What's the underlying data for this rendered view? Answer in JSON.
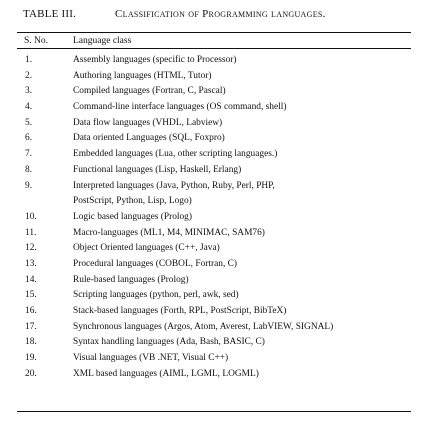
{
  "table": {
    "label": "TABLE III.",
    "title": "Classification of Programming languages.",
    "headers": {
      "no": "S. No.",
      "language_class": "Language class"
    },
    "rows": [
      {
        "no": "1.",
        "text": "Assembly languages (specific to Processor)"
      },
      {
        "no": "2.",
        "text": "Authoring languages (HTML, Tutor)"
      },
      {
        "no": "3.",
        "text": "Compiled languages (Fortran, C, Pascal)"
      },
      {
        "no": "4.",
        "text": "Command-line interface languages (OS command, shell)"
      },
      {
        "no": "5.",
        "text": "Data flow languages (VHDL, Labview)"
      },
      {
        "no": "6.",
        "text": "Data oriented Languages (SQL, Foxpro)"
      },
      {
        "no": "7.",
        "text": "Embedded languages (Lua, other scripting languages.)"
      },
      {
        "no": "8.",
        "text": "Functional languages (Lisp, Haskell, Erlang)"
      },
      {
        "no": "9.",
        "text": "Interpreted languages (Java, Python, Ruby, Perl, PHP,",
        "continuation": "PostScript, Python, Lisp, Logo)"
      },
      {
        "no": "10.",
        "text": "Logic based languages (Prolog)"
      },
      {
        "no": "11.",
        "text": "Macro-languages (ML1, M4, MINIMAC, SAM76)"
      },
      {
        "no": "12.",
        "text": "Object Oriented languages (C++, Java)"
      },
      {
        "no": "13.",
        "text": "Procedural languages (COBOL, Fortran, C)"
      },
      {
        "no": "14.",
        "text": "Rule-based languages (Prolog)"
      },
      {
        "no": "15.",
        "text": "Scripting languages (python, perl, awk, sed)"
      },
      {
        "no": "16.",
        "text": "Stack-based languages (Forth, RPL, PostScript, BibTeX)"
      },
      {
        "no": "17.",
        "text": "Synchronous languages (Argos, Atom, Averest, LabVIEW, SIGNAL)"
      },
      {
        "no": "18.",
        "text": "Syntax handling languages (Ada, Bash, BASIC, C)"
      },
      {
        "no": "19.",
        "text": "Visual languages (VB .NET, Visual C++)"
      },
      {
        "no": "20.",
        "text": "XML based languages (AIML, LGML, LOGML)"
      }
    ]
  }
}
